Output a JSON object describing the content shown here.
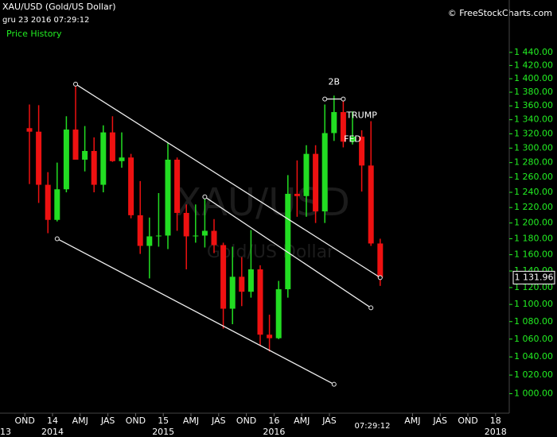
{
  "chart_data": {
    "type": "candlestick",
    "title": "XAU/USD (Gold/US Dollar)",
    "subtitle": "gru 23 2016 07:29:12",
    "legend_label": "Price History",
    "source": "© FreeStockCharts.com",
    "watermark": "XAU/USD",
    "watermark_sub": "Gold/US Dollar",
    "time_label": "07:29:12",
    "log_scale": true,
    "up_color": "#22dd22",
    "down_color": "#ee1111",
    "x": [
      "2013-10",
      "2013-11",
      "2013-12",
      "2014-01",
      "2014-02",
      "2014-03",
      "2014-04",
      "2014-05",
      "2014-06",
      "2014-07",
      "2014-08",
      "2014-09",
      "2014-10",
      "2014-11",
      "2014-12",
      "2015-01",
      "2015-02",
      "2015-03",
      "2015-04",
      "2015-05",
      "2015-06",
      "2015-07",
      "2015-08",
      "2015-09",
      "2015-10",
      "2015-11",
      "2015-12",
      "2016-01",
      "2016-02",
      "2016-03",
      "2016-04",
      "2016-05",
      "2016-06",
      "2016-07",
      "2016-08",
      "2016-09",
      "2016-10",
      "2016-11",
      "2016-12"
    ],
    "open": [
      1328,
      1323,
      1250,
      1204,
      1244,
      1326,
      1284,
      1296,
      1250,
      1322,
      1282,
      1287,
      1210,
      1171,
      1183,
      1184,
      1284,
      1213,
      1183,
      1184,
      1190,
      1172,
      1095,
      1133,
      1115,
      1142,
      1065,
      1061,
      1118,
      1238,
      1235,
      1292,
      1215,
      1321,
      1351,
      1309,
      1316,
      1276,
      1174
    ],
    "high": [
      1362,
      1361,
      1267,
      1280,
      1345,
      1392,
      1331,
      1315,
      1332,
      1345,
      1322,
      1292,
      1255,
      1207,
      1239,
      1307,
      1287,
      1224,
      1224,
      1232,
      1205,
      1175,
      1170,
      1157,
      1191,
      1147,
      1088,
      1128,
      1263,
      1283,
      1304,
      1304,
      1362,
      1375,
      1367,
      1352,
      1325,
      1338,
      1180
    ],
    "low": [
      1251,
      1226,
      1187,
      1202,
      1240,
      1286,
      1268,
      1240,
      1240,
      1281,
      1273,
      1206,
      1161,
      1131,
      1170,
      1167,
      1190,
      1142,
      1175,
      1169,
      1162,
      1072,
      1077,
      1098,
      1108,
      1053,
      1046,
      1060,
      1108,
      1208,
      1208,
      1200,
      1200,
      1310,
      1301,
      1305,
      1241,
      1171,
      1122
    ],
    "close": [
      1323,
      1250,
      1204,
      1244,
      1326,
      1284,
      1296,
      1250,
      1322,
      1282,
      1287,
      1210,
      1171,
      1183,
      1184,
      1284,
      1213,
      1183,
      1184,
      1190,
      1172,
      1095,
      1133,
      1115,
      1142,
      1065,
      1061,
      1118,
      1238,
      1235,
      1292,
      1215,
      1321,
      1351,
      1309,
      1316,
      1276,
      1174,
      1131.96
    ],
    "last_price": 1131.96,
    "last_price_label": "1 131.96",
    "ylim": [
      981,
      1510
    ],
    "yticks": [
      {
        "value": 1000,
        "label": "1 000.00"
      },
      {
        "value": 1020,
        "label": "1 020.00"
      },
      {
        "value": 1040,
        "label": "1 040.00"
      },
      {
        "value": 1060,
        "label": "1 060.00"
      },
      {
        "value": 1080,
        "label": "1 080.00"
      },
      {
        "value": 1100,
        "label": "1 100.00"
      },
      {
        "value": 1120,
        "label": "1 120.00"
      },
      {
        "value": 1140,
        "label": "1 140.00"
      },
      {
        "value": 1160,
        "label": "1 160.00"
      },
      {
        "value": 1180,
        "label": "1 180.00"
      },
      {
        "value": 1200,
        "label": "1 200.00"
      },
      {
        "value": 1220,
        "label": "1 220.00"
      },
      {
        "value": 1240,
        "label": "1 240.00"
      },
      {
        "value": 1260,
        "label": "1 260.00"
      },
      {
        "value": 1280,
        "label": "1 280.00"
      },
      {
        "value": 1300,
        "label": "1 300.00"
      },
      {
        "value": 1320,
        "label": "1 320.00"
      },
      {
        "value": 1340,
        "label": "1 340.00"
      },
      {
        "value": 1360,
        "label": "1 360.00"
      },
      {
        "value": 1380,
        "label": "1 380.00"
      },
      {
        "value": 1400,
        "label": "1 400.00"
      },
      {
        "value": 1420,
        "label": "1 420.00"
      },
      {
        "value": 1440,
        "label": "1 440.00"
      }
    ],
    "xticks": [
      {
        "value": "2013-10",
        "label": "OND"
      },
      {
        "value": "2014-01",
        "label": "14"
      },
      {
        "value": "2014-04",
        "label": "AMJ"
      },
      {
        "value": "2014-07",
        "label": "JAS"
      },
      {
        "value": "2014-10",
        "label": "OND"
      },
      {
        "value": "2015-01",
        "label": "15"
      },
      {
        "value": "2015-04",
        "label": "AMJ"
      },
      {
        "value": "2015-07",
        "label": "JAS"
      },
      {
        "value": "2015-10",
        "label": "OND"
      },
      {
        "value": "2016-01",
        "label": "16"
      },
      {
        "value": "2016-04",
        "label": "AMJ"
      },
      {
        "value": "2016-07",
        "label": "JAS"
      },
      {
        "value": "2017-04",
        "label": "AMJ"
      },
      {
        "value": "2017-07",
        "label": "JAS"
      },
      {
        "value": "2017-10",
        "label": "OND"
      },
      {
        "value": "2018-01",
        "label": "18"
      }
    ],
    "year_ticks": [
      {
        "value": "2013-01",
        "label": "13"
      },
      {
        "value": "2014-01",
        "label": "2014"
      },
      {
        "value": "2015-01",
        "label": "2015"
      },
      {
        "value": "2016-01",
        "label": "2016"
      },
      {
        "value": "2018-01",
        "label": "2018"
      }
    ],
    "trend_lines": [
      {
        "x": [
          "2014-03",
          "2016-12"
        ],
        "y": [
          1392,
          1132
        ]
      },
      {
        "x": [
          "2014-01",
          "2016-07"
        ],
        "y": [
          1180,
          1010
        ]
      },
      {
        "x": [
          "2015-05",
          "2016-11"
        ],
        "y": [
          1234,
          1096
        ]
      },
      {
        "x": [
          "2016-06",
          "2016-08"
        ],
        "y": [
          1370,
          1370
        ]
      }
    ],
    "annotations": [
      {
        "text": "2B",
        "x": "2016-07",
        "y": 1395
      },
      {
        "text": "TRUMP",
        "x": "2016-10",
        "y": 1346
      },
      {
        "text": "FED",
        "x": "2016-09",
        "y": 1312
      }
    ]
  }
}
